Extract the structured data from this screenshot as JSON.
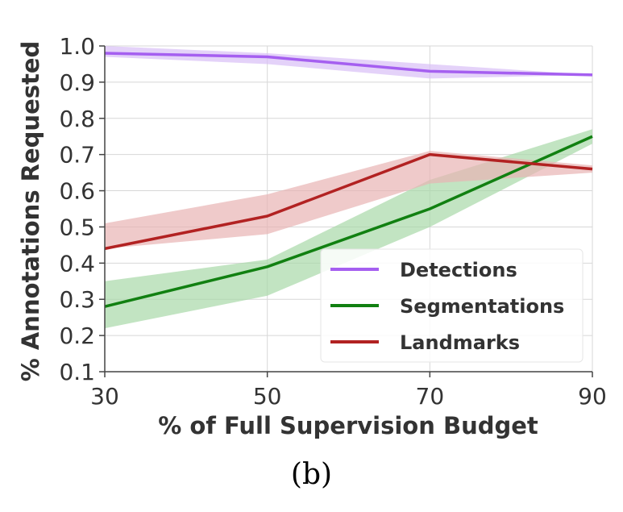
{
  "chart_data": {
    "type": "line",
    "xlabel": "% of Full Supervision Budget",
    "ylabel": "% Annotations Requested",
    "x": [
      30,
      50,
      70,
      90
    ],
    "xticks": [
      "30",
      "50",
      "70",
      "90"
    ],
    "yticks": [
      "0.1",
      "0.2",
      "0.3",
      "0.4",
      "0.5",
      "0.6",
      "0.7",
      "0.8",
      "0.9",
      "1.0"
    ],
    "xlim": [
      30,
      90
    ],
    "ylim": [
      0.1,
      1.0
    ],
    "grid": true,
    "legend_position": "bottom-right",
    "series": [
      {
        "name": "Detections",
        "color": "#a55ff0",
        "band_color": "#d9bff7",
        "values": [
          0.98,
          0.97,
          0.93,
          0.92
        ],
        "lower": [
          0.97,
          0.95,
          0.91,
          0.92
        ],
        "upper": [
          1.0,
          0.98,
          0.95,
          0.92
        ]
      },
      {
        "name": "Segmentations",
        "color": "#118011",
        "band_color": "#a8d8a8",
        "values": [
          0.28,
          0.39,
          0.55,
          0.75
        ],
        "lower": [
          0.22,
          0.31,
          0.5,
          0.73
        ],
        "upper": [
          0.35,
          0.41,
          0.63,
          0.77
        ]
      },
      {
        "name": "Landmarks",
        "color": "#b22222",
        "band_color": "#e8b4b4",
        "values": [
          0.44,
          0.53,
          0.7,
          0.66
        ],
        "lower": [
          0.44,
          0.48,
          0.62,
          0.65
        ],
        "upper": [
          0.51,
          0.59,
          0.71,
          0.67
        ]
      }
    ]
  },
  "caption": "(b)"
}
